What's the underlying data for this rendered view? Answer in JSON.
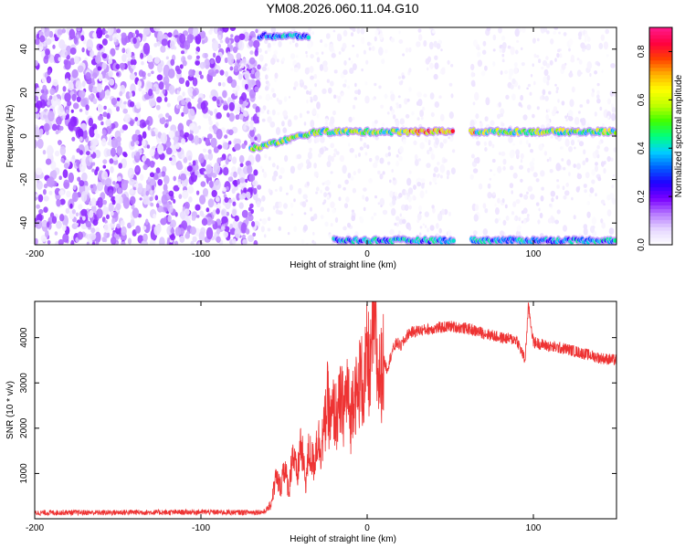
{
  "figure_title": "YM08.2026.060.11.04.G10",
  "chart_data": [
    {
      "type": "heatmap",
      "xlabel": "Height of straight line (km)",
      "ylabel": "Frequency (Hz)",
      "xlim": [
        -200,
        150
      ],
      "ylim": [
        -50,
        50
      ],
      "xticks": [
        "-200",
        "-100",
        "0",
        "100"
      ],
      "yticks": [
        "-40",
        "-20",
        "0",
        "20",
        "40"
      ],
      "colorbar": {
        "label": "Normalized spectral amplitude",
        "range": [
          0,
          0.9
        ],
        "ticks": [
          "0.0",
          "0.2",
          "0.4",
          "0.6",
          "0.8"
        ],
        "colormap": [
          "#ffffff",
          "#e6d8ff",
          "#b77bff",
          "#7a00ff",
          "#2000ff",
          "#0060ff",
          "#00d0ff",
          "#00ff80",
          "#40ff00",
          "#c0ff00",
          "#ffff00",
          "#ffb000",
          "#ff4000",
          "#ff0040",
          "#ff1a8c"
        ]
      },
      "features": [
        {
          "name": "low-height noise",
          "x_range": [
            -200,
            -65
          ],
          "level": 0.1
        },
        {
          "name": "sparse noise",
          "x_range": [
            -65,
            150
          ],
          "level": 0.03
        },
        {
          "name": "main band",
          "x_range": [
            -70,
            150
          ],
          "freq": 2,
          "level": 0.5
        },
        {
          "name": "upper band",
          "x_range": [
            -65,
            -35
          ],
          "freq": 46,
          "level": 0.35
        },
        {
          "name": "lower band",
          "x_range": [
            -20,
            150
          ],
          "freq": -48,
          "level": 0.35
        }
      ],
      "gap": [
        52,
        62
      ]
    },
    {
      "type": "line",
      "xlabel": "Height of straight line (km)",
      "ylabel": "SNR (10 * v/v)",
      "xlim": [
        -200,
        150
      ],
      "ylim": [
        0,
        4800
      ],
      "xticks": [
        "-200",
        "-100",
        "0",
        "100"
      ],
      "yticks": [
        "1000",
        "2000",
        "3000",
        "4000"
      ],
      "color": "#ee3333",
      "series": [
        {
          "values": [
            [
              -200,
              130
            ],
            [
              -180,
              140
            ],
            [
              -160,
              135
            ],
            [
              -140,
              145
            ],
            [
              -120,
              140
            ],
            [
              -100,
              150
            ],
            [
              -80,
              140
            ],
            [
              -62,
              150
            ],
            [
              -58,
              300
            ],
            [
              -55,
              900
            ],
            [
              -52,
              700
            ],
            [
              -50,
              1200
            ],
            [
              -47,
              600
            ],
            [
              -45,
              1500
            ],
            [
              -42,
              900
            ],
            [
              -40,
              1700
            ],
            [
              -37,
              800
            ],
            [
              -35,
              1500
            ],
            [
              -32,
              1200
            ],
            [
              -30,
              1800
            ],
            [
              -28,
              1600
            ],
            [
              -26,
              1900
            ],
            [
              -24,
              2600
            ],
            [
              -22,
              2100
            ],
            [
              -20,
              2400
            ],
            [
              -18,
              2200
            ],
            [
              -16,
              2600
            ],
            [
              -14,
              2400
            ],
            [
              -12,
              2900
            ],
            [
              -10,
              2100
            ],
            [
              -8,
              3000
            ],
            [
              -6,
              2600
            ],
            [
              -4,
              3200
            ],
            [
              -2,
              2800
            ],
            [
              0,
              3600
            ],
            [
              2,
              3200
            ],
            [
              4,
              4800
            ],
            [
              6,
              3300
            ],
            [
              8,
              3100
            ],
            [
              10,
              3500
            ],
            [
              12,
              3300
            ],
            [
              15,
              3700
            ],
            [
              18,
              3900
            ],
            [
              20,
              3800
            ],
            [
              25,
              4100
            ],
            [
              30,
              4150
            ],
            [
              40,
              4200
            ],
            [
              50,
              4250
            ],
            [
              60,
              4200
            ],
            [
              70,
              4100
            ],
            [
              80,
              4000
            ],
            [
              90,
              3950
            ],
            [
              95,
              3500
            ],
            [
              97,
              4700
            ],
            [
              100,
              3900
            ],
            [
              110,
              3800
            ],
            [
              120,
              3750
            ],
            [
              130,
              3650
            ],
            [
              140,
              3550
            ],
            [
              150,
              3500
            ]
          ]
        }
      ]
    }
  ]
}
